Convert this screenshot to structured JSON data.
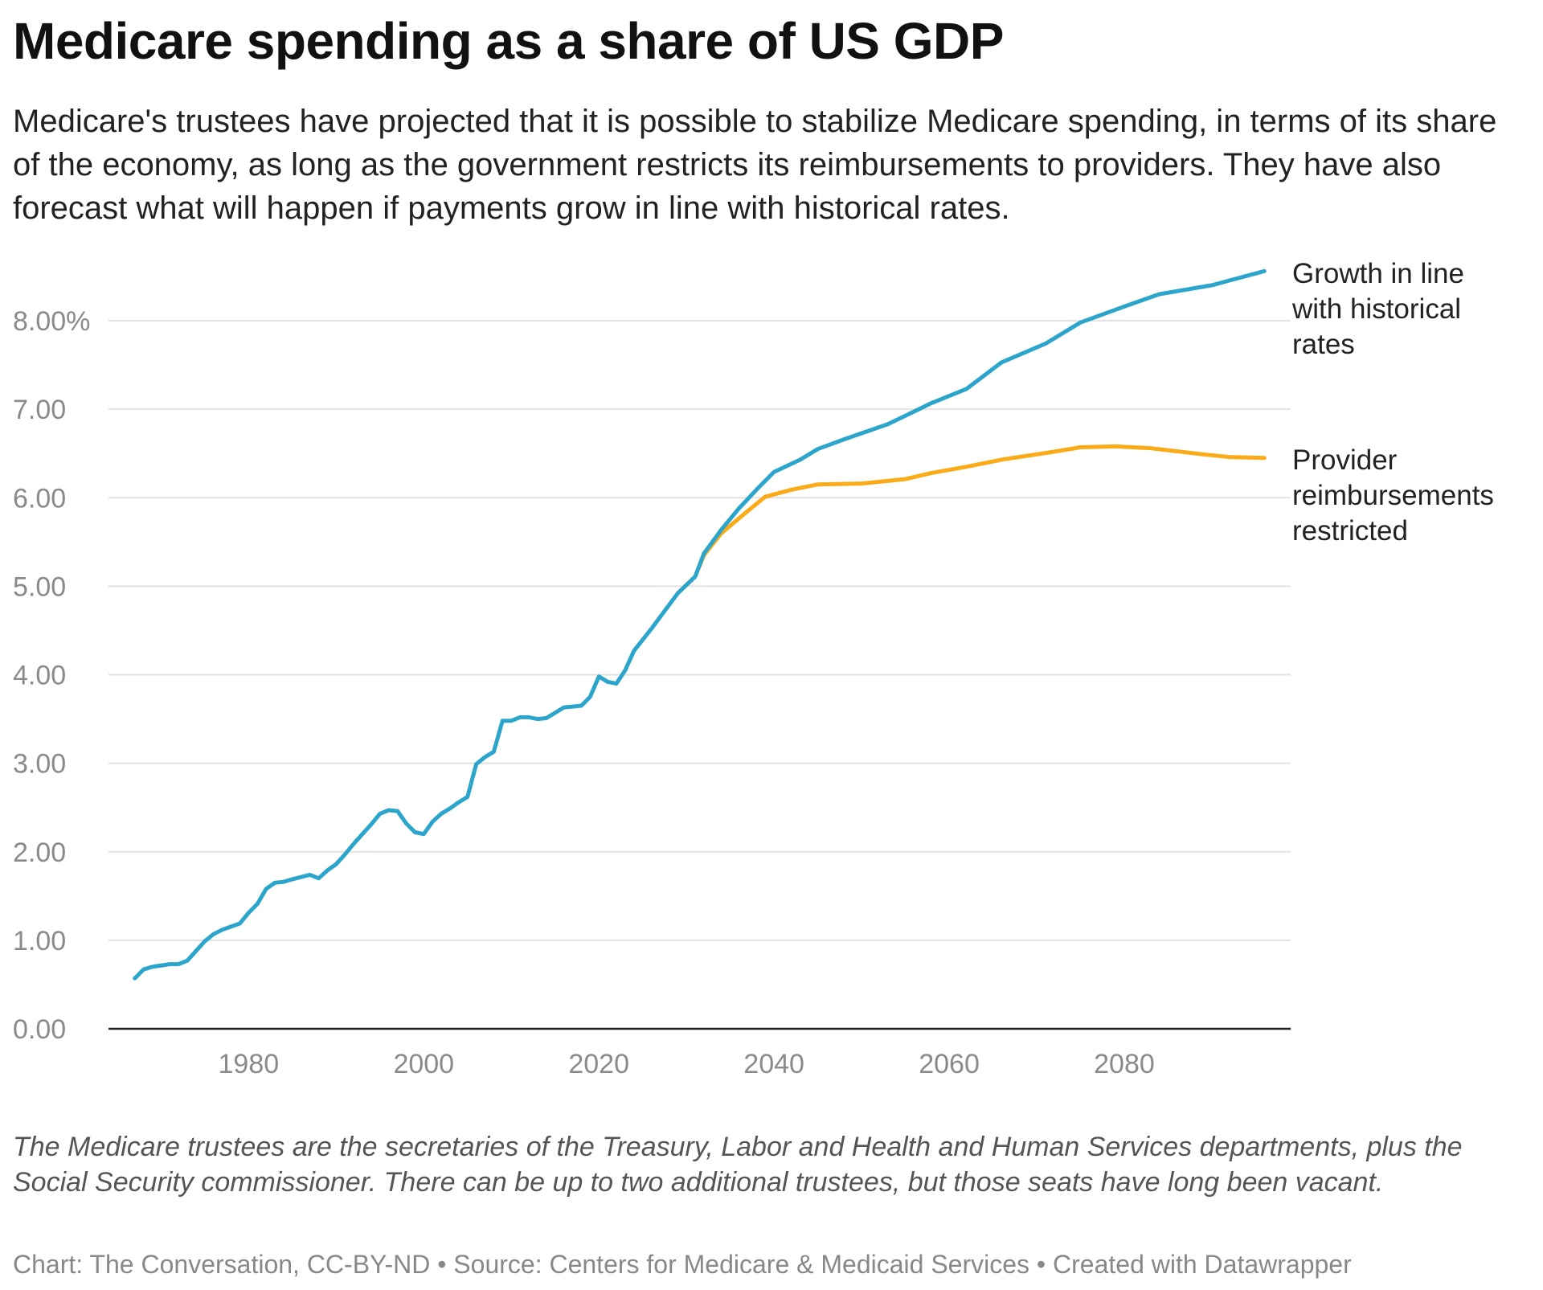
{
  "header": {
    "title": "Medicare spending as a share of US GDP",
    "subtitle": "Medicare's trustees have projected that it is possible to stabilize Medicare spending, in terms of its share of the economy, as long as the government restricts its reimbursements to providers. They have also forecast what will happen if payments grow in line with historical rates."
  },
  "notes": "The Medicare trustees are the secretaries of the Treasury, Labor and Health and Human Services departments, plus the Social Security commissioner. There can be up to two additional trustees, but those seats have long been vacant.",
  "footer": "Chart: The Conversation, CC-BY-ND • Source: Centers for Medicare & Medicaid Services • Created with Datawrapper",
  "chart_data": {
    "type": "line",
    "xlim": [
      1964,
      2099
    ],
    "ylim": [
      0,
      8.6
    ],
    "grid": true,
    "x_ticks": [
      1980,
      2000,
      2020,
      2040,
      2060,
      2080
    ],
    "y_ticks": [
      {
        "v": 0,
        "label": "0.00"
      },
      {
        "v": 1,
        "label": "1.00"
      },
      {
        "v": 2,
        "label": "2.00"
      },
      {
        "v": 3,
        "label": "3.00"
      },
      {
        "v": 4,
        "label": "4.00"
      },
      {
        "v": 5,
        "label": "5.00"
      },
      {
        "v": 6,
        "label": "6.00"
      },
      {
        "v": 7,
        "label": "7.00"
      },
      {
        "v": 8,
        "label": "8.00%"
      }
    ],
    "series": [
      {
        "name": "Growth in line with historical rates",
        "color": "#2ba5cc",
        "x": [
          1967,
          1968,
          1969,
          1971,
          1972,
          1973,
          1974,
          1975,
          1976,
          1977,
          1979,
          1980,
          1981,
          1982,
          1983,
          1984,
          1985,
          1987,
          1988,
          1989,
          1990,
          1991,
          1992,
          1993,
          1994,
          1995,
          1996,
          1997,
          1998,
          1999,
          2000,
          2001,
          2002,
          2003,
          2004,
          2005,
          2006,
          2007,
          2008,
          2009,
          2010,
          2011,
          2012,
          2013,
          2014,
          2015,
          2016,
          2017,
          2018,
          2019,
          2020,
          2021,
          2022,
          2023,
          2024,
          2026,
          2029,
          2031,
          2032,
          2034,
          2036,
          2038,
          2040,
          2043,
          2045,
          2048,
          2053,
          2058,
          2062,
          2066,
          2071,
          2075,
          2080,
          2084,
          2090,
          2096
        ],
        "y": [
          0.57,
          0.67,
          0.7,
          0.73,
          0.73,
          0.77,
          0.88,
          0.99,
          1.07,
          1.12,
          1.19,
          1.31,
          1.41,
          1.58,
          1.65,
          1.66,
          1.69,
          1.74,
          1.7,
          1.79,
          1.86,
          1.97,
          2.09,
          2.2,
          2.31,
          2.43,
          2.47,
          2.46,
          2.32,
          2.22,
          2.2,
          2.34,
          2.43,
          2.49,
          2.56,
          2.62,
          2.99,
          3.07,
          3.13,
          3.48,
          3.48,
          3.52,
          3.52,
          3.5,
          3.51,
          3.57,
          3.63,
          3.64,
          3.65,
          3.75,
          3.98,
          3.92,
          3.9,
          4.05,
          4.27,
          4.52,
          4.92,
          5.11,
          5.37,
          5.64,
          5.88,
          6.09,
          6.29,
          6.43,
          6.55,
          6.66,
          6.83,
          7.07,
          7.23,
          7.53,
          7.74,
          7.98,
          8.16,
          8.3,
          8.4,
          8.56
        ]
      },
      {
        "name": "Provider reimbursements restricted",
        "color": "#fbab18",
        "x": [
          2029,
          2031,
          2032,
          2034,
          2037,
          2039,
          2042,
          2045,
          2050,
          2055,
          2058,
          2062,
          2066,
          2072,
          2075,
          2079,
          2083,
          2089,
          2092,
          2096
        ],
        "y": [
          4.92,
          5.11,
          5.35,
          5.6,
          5.85,
          6.01,
          6.09,
          6.15,
          6.16,
          6.21,
          6.28,
          6.35,
          6.43,
          6.52,
          6.57,
          6.58,
          6.56,
          6.49,
          6.46,
          6.45
        ]
      }
    ],
    "labels": [
      [
        "Growth in line",
        "with historical",
        "rates"
      ],
      [
        "Provider",
        "reimbursements",
        "restricted"
      ]
    ]
  }
}
